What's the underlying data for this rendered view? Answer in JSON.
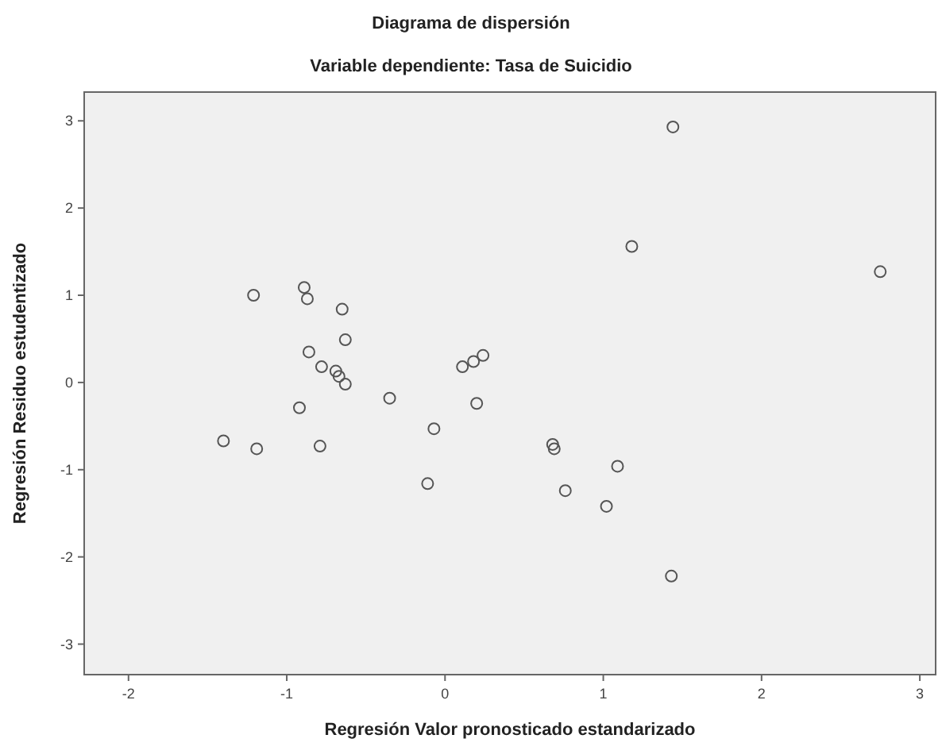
{
  "chart_data": {
    "type": "scatter",
    "title": "Diagrama de dispersión",
    "subtitle": "Variable dependiente: Tasa de Suicidio",
    "xlabel": "Regresión Valor pronosticado estandarizado",
    "ylabel": "Regresión Residuo estudentizado",
    "marker": "circle",
    "grid": false,
    "xlim": [
      -2.28,
      3.1
    ],
    "xticks": [
      -2,
      -1,
      0,
      1,
      2,
      3
    ],
    "ylim": [
      -3.35,
      3.33
    ],
    "yticks": [
      -3,
      -2,
      -1,
      0,
      1,
      2,
      3
    ],
    "series": [
      {
        "color": "#555555",
        "x": [
          1.44,
          1.18,
          2.75,
          -1.21,
          -0.89,
          -0.87,
          -0.65,
          -0.63,
          -0.86,
          -0.78,
          -0.69,
          -0.67,
          -0.63,
          -0.35,
          -0.92,
          -1.4,
          -1.19,
          -0.79,
          -0.07,
          -0.11,
          0.11,
          0.18,
          0.24,
          0.2,
          0.68,
          0.69,
          1.09,
          0.76,
          1.02,
          1.43
        ],
        "values": [
          2.93,
          1.56,
          1.27,
          1.0,
          1.09,
          0.96,
          0.84,
          0.49,
          0.35,
          0.18,
          0.13,
          0.07,
          -0.02,
          -0.18,
          -0.29,
          -0.67,
          -0.76,
          -0.73,
          -0.53,
          -1.16,
          0.18,
          0.24,
          0.31,
          -0.24,
          -0.71,
          -0.76,
          -0.96,
          -1.24,
          -1.42,
          -2.22
        ]
      }
    ]
  }
}
